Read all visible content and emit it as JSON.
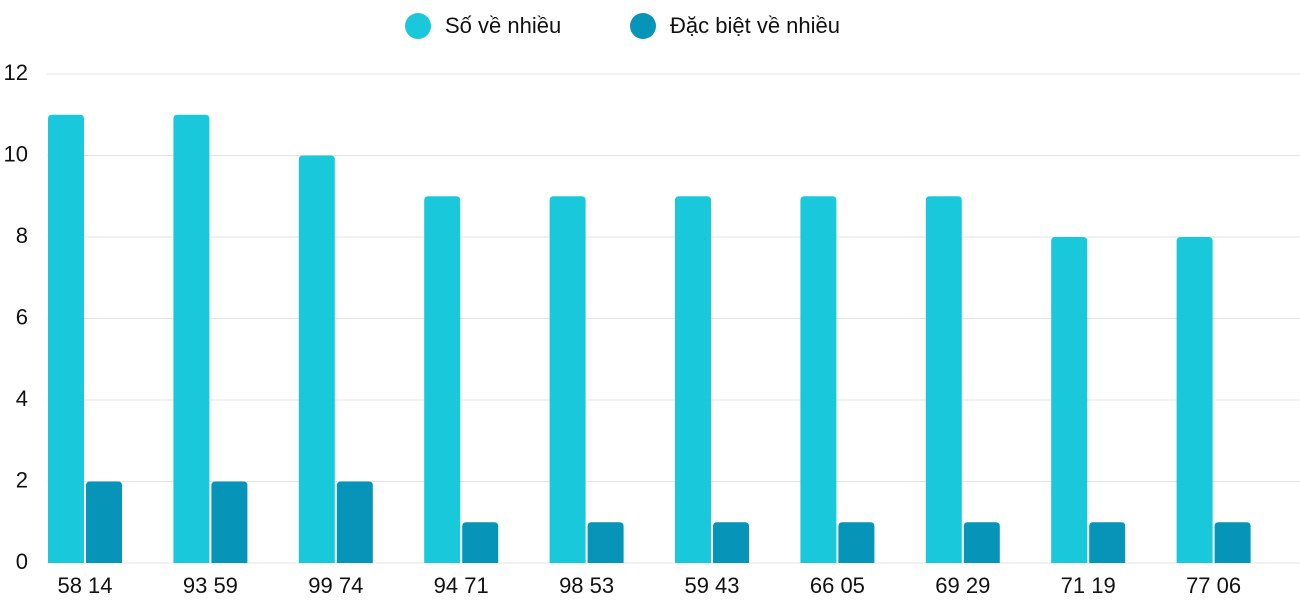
{
  "chart_data": {
    "type": "bar",
    "categories": [
      "58 14",
      "93 59",
      "99 74",
      "94 71",
      "98 53",
      "59 43",
      "66 05",
      "69 29",
      "71 19",
      "77 06"
    ],
    "series": [
      {
        "name": "Số về nhiều",
        "color": "#1ac8db",
        "values": [
          11,
          11,
          10,
          9,
          9,
          9,
          9,
          9,
          8,
          8
        ]
      },
      {
        "name": "Đặc biệt về nhiều",
        "color": "#0694b8",
        "values": [
          2,
          2,
          2,
          1,
          1,
          1,
          1,
          1,
          1,
          1
        ]
      }
    ],
    "ylim": [
      0,
      12
    ],
    "yticks": [
      0,
      2,
      4,
      6,
      8,
      10,
      12
    ],
    "grid": true,
    "legend": "top"
  }
}
